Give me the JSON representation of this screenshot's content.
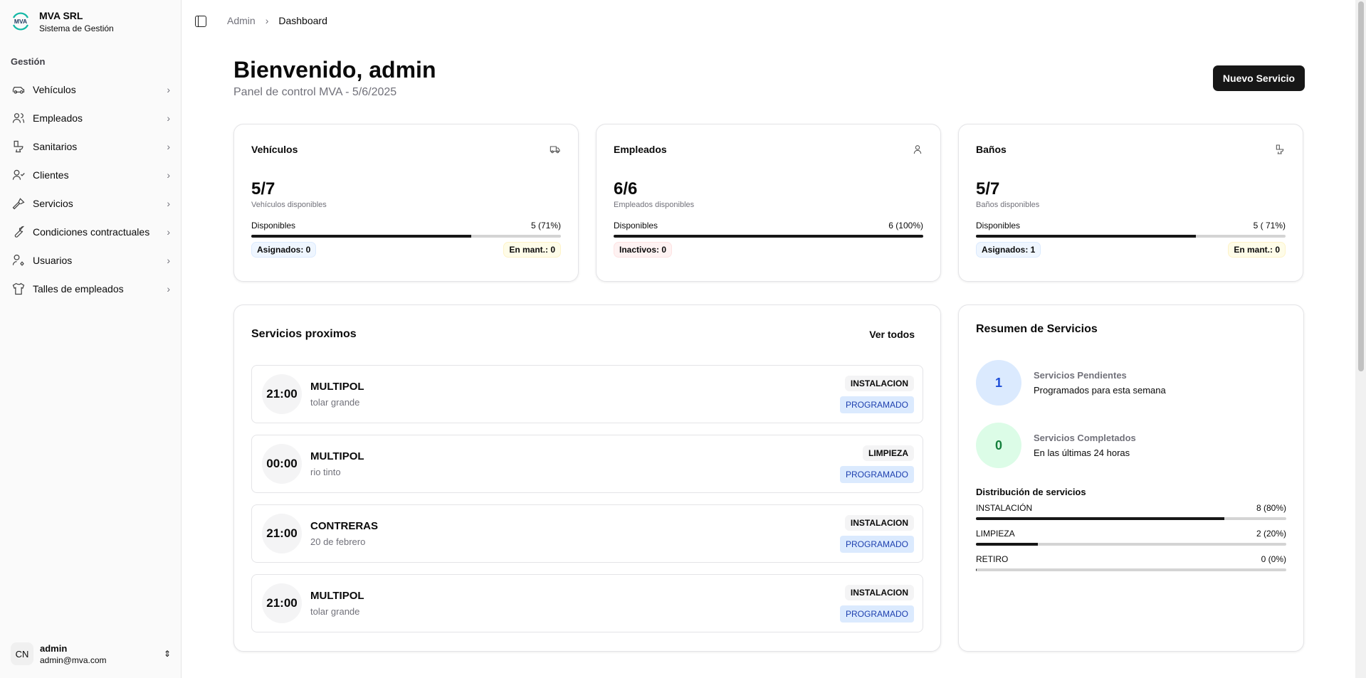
{
  "sidebar": {
    "brand": "MVA SRL",
    "subtitle": "Sistema de Gestión",
    "logo_text": "MVA",
    "group": "Gestión",
    "items": [
      {
        "label": "Vehículos",
        "icon": "car-icon"
      },
      {
        "label": "Empleados",
        "icon": "users-icon"
      },
      {
        "label": "Sanitarios",
        "icon": "toilet-icon"
      },
      {
        "label": "Clientes",
        "icon": "user-check-icon"
      },
      {
        "label": "Servicios",
        "icon": "hammer-icon"
      },
      {
        "label": "Condiciones contractuales",
        "icon": "wrench-icon"
      },
      {
        "label": "Usuarios",
        "icon": "user-cog-icon"
      },
      {
        "label": "Talles de empleados",
        "icon": "shirt-icon"
      }
    ],
    "user": {
      "initials": "CN",
      "name": "admin",
      "email": "admin@mva.com"
    }
  },
  "breadcrumb": {
    "parent": "Admin",
    "current": "Dashboard"
  },
  "header": {
    "title": "Bienvenido, admin",
    "subtitle": "Panel de control MVA - 5/6/2025",
    "new_button": "Nuevo Servicio"
  },
  "stats": [
    {
      "title": "Vehículos",
      "icon": "truck-icon",
      "value": "5/7",
      "caption": "Vehículos disponibles",
      "bar_label": "Disponibles",
      "bar_value": "5 (71%)",
      "percent": 71,
      "badge_left": "Asignados: 0",
      "badge_right": "En mant.: 0"
    },
    {
      "title": "Empleados",
      "icon": "user-icon",
      "value": "6/6",
      "caption": "Empleados disponibles",
      "bar_label": "Disponibles",
      "bar_value": "6 (100%)",
      "percent": 100,
      "badge_left": "Inactivos: 0"
    },
    {
      "title": "Baños",
      "icon": "toilet-icon",
      "value": "5/7",
      "caption": "Baños disponibles",
      "bar_label": "Disponibles",
      "bar_value": "5 ( 71%)",
      "percent": 71,
      "badge_left": "Asignados: 1",
      "badge_right": "En mant.: 0"
    }
  ],
  "upcoming": {
    "title": "Servicios proximos",
    "view_all": "Ver todos",
    "items": [
      {
        "time": "21:00",
        "client": "MULTIPOL",
        "location": "tolar grande",
        "type": "INSTALACION",
        "status": "PROGRAMADO"
      },
      {
        "time": "00:00",
        "client": "MULTIPOL",
        "location": "rio tinto",
        "type": "LIMPIEZA",
        "status": "PROGRAMADO"
      },
      {
        "time": "21:00",
        "client": "CONTRERAS",
        "location": "20 de febrero",
        "type": "INSTALACION",
        "status": "PROGRAMADO"
      },
      {
        "time": "21:00",
        "client": "MULTIPOL",
        "location": "tolar grande",
        "type": "INSTALACION",
        "status": "PROGRAMADO"
      }
    ]
  },
  "summary": {
    "title": "Resumen de Servicios",
    "pending": {
      "count": "1",
      "label": "Servicios Pendientes",
      "desc": "Programados para esta semana",
      "color": "#1d4ed8",
      "bg": "#dbeafe"
    },
    "completed": {
      "count": "0",
      "label": "Servicios Completados",
      "desc": "En las últimas 24 horas",
      "color": "#15803d",
      "bg": "#dcfce7"
    },
    "distribution_title": "Distribución de servicios",
    "distribution": [
      {
        "label": "INSTALACIÓN",
        "value": "8 (80%)",
        "percent": 80
      },
      {
        "label": "LIMPIEZA",
        "value": "2 (20%)",
        "percent": 20
      },
      {
        "label": "RETIRO",
        "value": "0 (0%)",
        "percent": 0
      }
    ]
  }
}
